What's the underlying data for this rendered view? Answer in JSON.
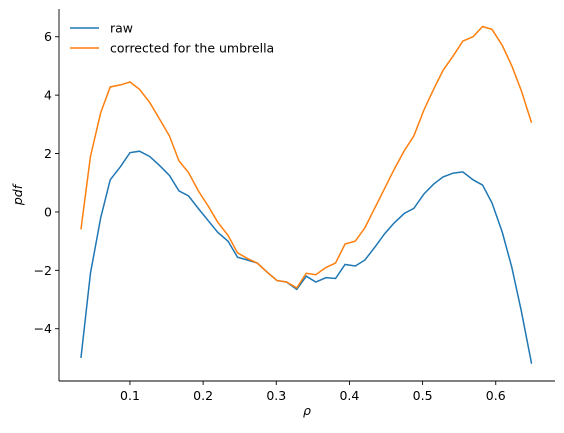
{
  "chart_data": {
    "type": "line",
    "x": [
      0.033,
      0.046,
      0.06,
      0.073,
      0.087,
      0.1,
      0.113,
      0.127,
      0.14,
      0.154,
      0.167,
      0.18,
      0.194,
      0.207,
      0.22,
      0.234,
      0.247,
      0.261,
      0.274,
      0.287,
      0.301,
      0.314,
      0.328,
      0.341,
      0.354,
      0.368,
      0.381,
      0.394,
      0.408,
      0.421,
      0.435,
      0.448,
      0.461,
      0.475,
      0.488,
      0.502,
      0.515,
      0.528,
      0.542,
      0.555,
      0.569,
      0.582,
      0.595,
      0.609,
      0.622,
      0.635,
      0.649
    ],
    "series": [
      {
        "name": "raw",
        "color": "#1f77b4",
        "values": [
          -5.0,
          -2.1,
          -0.2,
          1.1,
          1.55,
          2.03,
          2.08,
          1.9,
          1.6,
          1.25,
          0.72,
          0.55,
          0.1,
          -0.3,
          -0.7,
          -1.0,
          -1.55,
          -1.65,
          -1.75,
          -2.05,
          -2.35,
          -2.4,
          -2.65,
          -2.2,
          -2.4,
          -2.25,
          -2.28,
          -1.8,
          -1.85,
          -1.65,
          -1.2,
          -0.75,
          -0.38,
          -0.05,
          0.12,
          0.62,
          0.95,
          1.2,
          1.33,
          1.37,
          1.1,
          0.92,
          0.3,
          -0.7,
          -1.9,
          -3.4,
          -5.2
        ]
      },
      {
        "name": "corrected for the umbrella",
        "color": "#ff7f0e",
        "values": [
          -0.6,
          1.9,
          3.4,
          4.28,
          4.35,
          4.45,
          4.2,
          3.75,
          3.2,
          2.6,
          1.75,
          1.35,
          0.7,
          0.2,
          -0.35,
          -0.8,
          -1.4,
          -1.6,
          -1.75,
          -2.05,
          -2.35,
          -2.4,
          -2.6,
          -2.1,
          -2.15,
          -1.9,
          -1.75,
          -1.1,
          -1.0,
          -0.55,
          0.15,
          0.8,
          1.45,
          2.1,
          2.6,
          3.5,
          4.2,
          4.85,
          5.35,
          5.85,
          6.0,
          6.35,
          6.25,
          5.7,
          5.0,
          4.15,
          3.05
        ]
      }
    ],
    "x_label": "ρ",
    "y_label": "pdf",
    "xlim": [
      0.003,
      0.681
    ],
    "ylim": [
      -5.79,
      6.95
    ],
    "xticks": [
      0.1,
      0.2,
      0.3,
      0.4,
      0.5,
      0.6
    ],
    "yticks": [
      {
        "value": -4,
        "label": "−4"
      },
      {
        "value": -2,
        "label": "−2"
      },
      0,
      2,
      4,
      6
    ],
    "legend": "upper left"
  }
}
